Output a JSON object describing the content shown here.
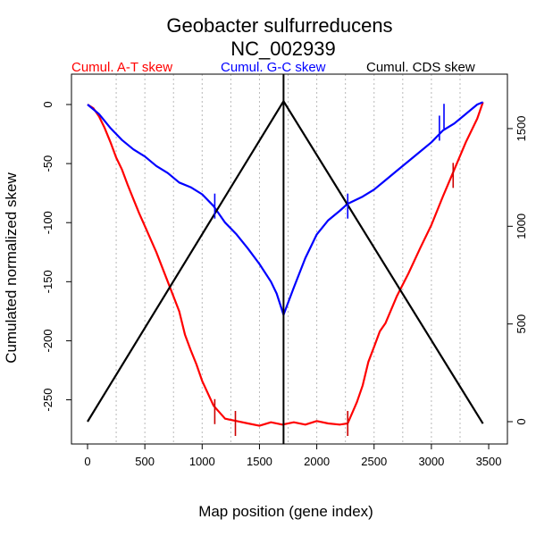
{
  "chart_data": {
    "type": "line",
    "title": "Geobacter sulfurreducens",
    "subtitle": "NC_002939",
    "xlabel": "Map position (gene index)",
    "ylabel": "Cumulated normalized skew",
    "legend": {
      "placement": "top",
      "entries": [
        {
          "label": "Cumul. A-T skew",
          "color": "#ff0000"
        },
        {
          "label": "Cumul. G-C skew",
          "color": "#0000ff"
        },
        {
          "label": "Cumul. CDS skew",
          "color": "#000000"
        }
      ]
    },
    "xlim": [
      0,
      3500
    ],
    "ylim": [
      -280,
      20
    ],
    "y2lim": [
      -60,
      1700
    ],
    "x_ticks": [
      0,
      500,
      1000,
      1500,
      2000,
      2500,
      3000,
      3500
    ],
    "y_ticks": [
      0,
      -50,
      -100,
      -150,
      -200,
      -250
    ],
    "y2_ticks": [
      0,
      500,
      1000,
      1500
    ],
    "grid": "vertical dotted every 250",
    "vertical_line_x": 1710,
    "series": [
      {
        "name": "Cumul. A-T skew",
        "color": "#ff0000",
        "axis": "left",
        "x": [
          0,
          50,
          100,
          150,
          200,
          250,
          300,
          350,
          400,
          450,
          500,
          600,
          700,
          800,
          850,
          900,
          950,
          1000,
          1100,
          1200,
          1300,
          1400,
          1500,
          1600,
          1700,
          1800,
          1900,
          2000,
          2100,
          2200,
          2270,
          2350,
          2400,
          2450,
          2500,
          2550,
          2600,
          2700,
          2800,
          2900,
          3000,
          3100,
          3200,
          3300,
          3400,
          3450
        ],
        "y": [
          0,
          -3,
          -10,
          -20,
          -32,
          -45,
          -55,
          -68,
          -80,
          -92,
          -103,
          -125,
          -150,
          -175,
          -195,
          -208,
          -220,
          -234,
          -255,
          -266,
          -268,
          -270,
          -272,
          -269,
          -271,
          -269,
          -271,
          -268,
          -270,
          -271,
          -270,
          -252,
          -238,
          -218,
          -205,
          -192,
          -185,
          -162,
          -143,
          -122,
          -102,
          -78,
          -55,
          -32,
          -12,
          2
        ]
      },
      {
        "name": "Cumul. G-C skew",
        "color": "#0000ff",
        "axis": "left",
        "x": [
          0,
          100,
          200,
          300,
          400,
          500,
          600,
          700,
          800,
          900,
          1000,
          1100,
          1200,
          1300,
          1400,
          1500,
          1600,
          1650,
          1710,
          1800,
          1900,
          2000,
          2100,
          2200,
          2270,
          2400,
          2500,
          2600,
          2700,
          2800,
          2900,
          3000,
          3100,
          3200,
          3300,
          3400,
          3450
        ],
        "y": [
          0,
          -8,
          -20,
          -30,
          -38,
          -44,
          -52,
          -58,
          -66,
          -70,
          -76,
          -86,
          -100,
          -110,
          -122,
          -135,
          -150,
          -160,
          -178,
          -155,
          -130,
          -110,
          -98,
          -90,
          -84,
          -78,
          -72,
          -64,
          -56,
          -48,
          -40,
          -32,
          -22,
          -16,
          -8,
          0,
          2
        ]
      },
      {
        "name": "Cumul. CDS skew",
        "color": "#000000",
        "axis": "right",
        "x": [
          0,
          1710,
          3450
        ],
        "y": [
          0,
          1640,
          -10
        ]
      }
    ],
    "markers": {
      "at": [
        {
          "x": 1110,
          "y": -260
        },
        {
          "x": 1290,
          "y": -270
        },
        {
          "x": 2270,
          "y": -270
        },
        {
          "x": 3190,
          "y": -60
        }
      ],
      "gc": [
        {
          "x": 1110,
          "y": -86
        },
        {
          "x": 2270,
          "y": -86
        },
        {
          "x": 3070,
          "y": -20
        },
        {
          "x": 3110,
          "y": -10
        }
      ]
    }
  }
}
